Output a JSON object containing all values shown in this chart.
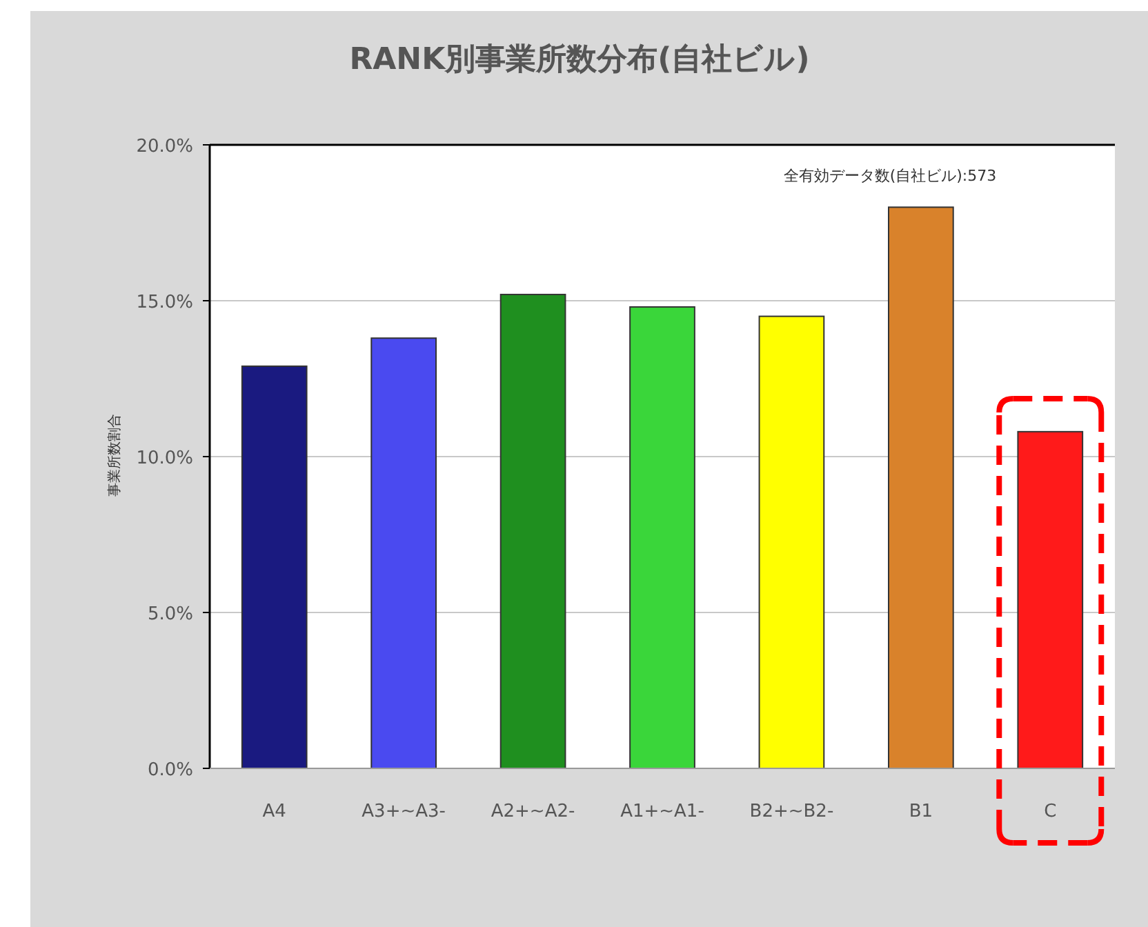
{
  "chart_data": {
    "type": "bar",
    "title": "RANK別事業所数分布(自社ビル)",
    "ylabel": "事業所数割合",
    "annotations": [
      "全有効データ数(自社ビル):573"
    ],
    "categories": [
      "A4",
      "A3+~A3-",
      "A2+~A2-",
      "A1+~A1-",
      "B2+~B2-",
      "B1",
      "C"
    ],
    "values": [
      12.9,
      13.8,
      15.2,
      14.8,
      14.5,
      18.0,
      10.8
    ],
    "colors": [
      "#1a1a80",
      "#4a4af0",
      "#1f8f1f",
      "#3ad63a",
      "#ffff00",
      "#d9822b",
      "#ff1a1a"
    ],
    "ylim": [
      0,
      20
    ],
    "yticks": [
      {
        "value": 0,
        "label": "0.0%"
      },
      {
        "value": 5,
        "label": "5.0%"
      },
      {
        "value": 10,
        "label": "10.0%"
      },
      {
        "value": 15,
        "label": "15.0%"
      },
      {
        "value": 20,
        "label": "20.0%"
      }
    ],
    "grid": "y"
  }
}
